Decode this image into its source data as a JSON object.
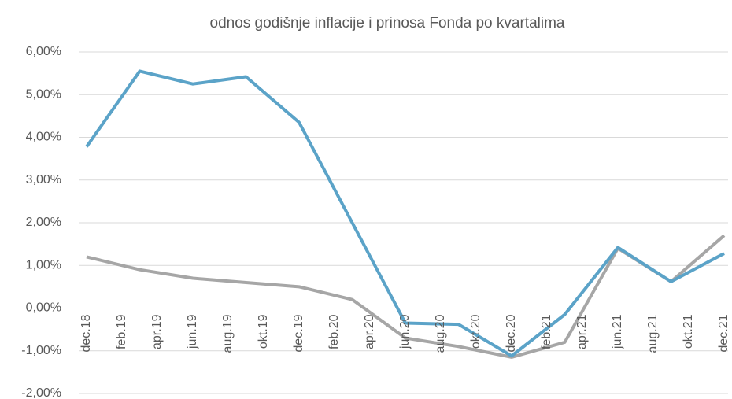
{
  "chart_data": {
    "type": "line",
    "title": "odnos godišnje inflacije i prinosa Fonda po kvartalima",
    "x": [
      0,
      3,
      6,
      9,
      12,
      15,
      18,
      21,
      24,
      27,
      30,
      33,
      36
    ],
    "xlim": [
      0,
      36
    ],
    "xticks": [
      {
        "value": 0,
        "label": "dec.18"
      },
      {
        "value": 2,
        "label": "feb.19"
      },
      {
        "value": 4,
        "label": "apr.19"
      },
      {
        "value": 6,
        "label": "jun.19"
      },
      {
        "value": 8,
        "label": "aug.19"
      },
      {
        "value": 10,
        "label": "okt.19"
      },
      {
        "value": 12,
        "label": "dec.19"
      },
      {
        "value": 14,
        "label": "feb.20"
      },
      {
        "value": 16,
        "label": "apr.20"
      },
      {
        "value": 18,
        "label": "jun.20"
      },
      {
        "value": 20,
        "label": "aug.20"
      },
      {
        "value": 22,
        "label": "okt.20"
      },
      {
        "value": 24,
        "label": "dec.20"
      },
      {
        "value": 26,
        "label": "feb.21"
      },
      {
        "value": 28,
        "label": "apr.21"
      },
      {
        "value": 30,
        "label": "jun.21"
      },
      {
        "value": 32,
        "label": "aug.21"
      },
      {
        "value": 34,
        "label": "okt.21"
      },
      {
        "value": 36,
        "label": "dec.21"
      }
    ],
    "series": [
      {
        "color": "#a6a6a6",
        "values": [
          1.2,
          0.9,
          0.7,
          0.6,
          0.5,
          0.2,
          -0.7,
          -0.9,
          -1.15,
          -0.8,
          1.4,
          0.62,
          1.7
        ]
      },
      {
        "color": "#5ba3c8",
        "values": [
          3.78,
          5.55,
          5.25,
          5.42,
          4.35,
          2.0,
          -0.35,
          -0.38,
          -1.12,
          -0.15,
          1.42,
          0.62,
          1.28
        ]
      }
    ],
    "ylim": [
      -2,
      6
    ],
    "yticks": [
      {
        "value": -2,
        "label": "-2,00%"
      },
      {
        "value": -1,
        "label": "-1,00%"
      },
      {
        "value": 0,
        "label": "0,00%"
      },
      {
        "value": 1,
        "label": "1,00%"
      },
      {
        "value": 2,
        "label": "2,00%"
      },
      {
        "value": 3,
        "label": "3,00%"
      },
      {
        "value": 4,
        "label": "4,00%"
      },
      {
        "value": 5,
        "label": "5,00%"
      },
      {
        "value": 6,
        "label": "6,00%"
      }
    ],
    "grid": true
  }
}
